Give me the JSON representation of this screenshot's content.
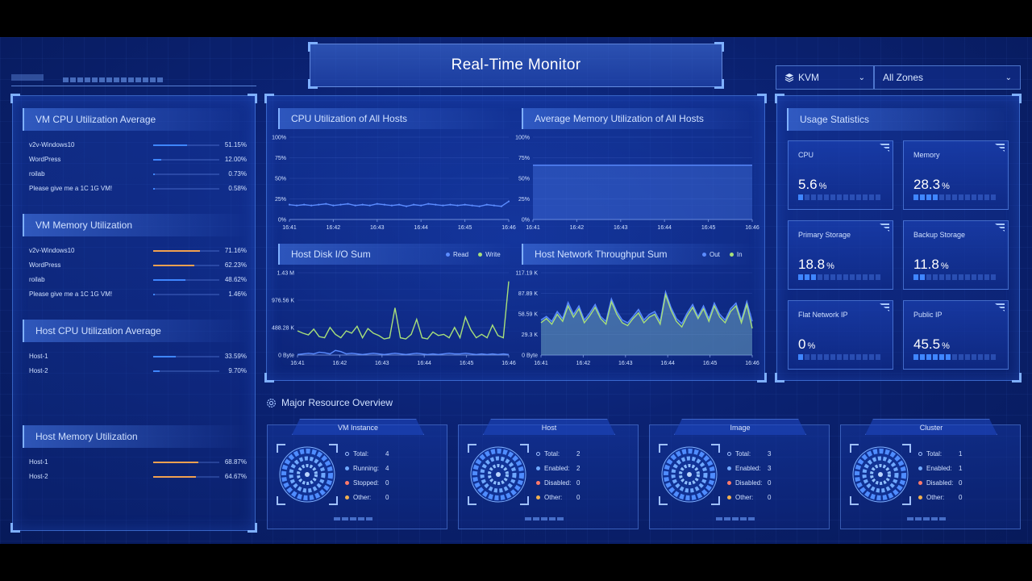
{
  "header": {
    "title": "Real-Time Monitor"
  },
  "selectors": {
    "hypervisor": {
      "value": "KVM",
      "icon": "layers-icon"
    },
    "zone": {
      "value": "All Zones"
    }
  },
  "left": {
    "vm_cpu": {
      "title": "VM CPU Utilization Average",
      "items": [
        {
          "name": "v2v-Windows10",
          "pct": "51.15%",
          "value": 51.15
        },
        {
          "name": "WordPress",
          "pct": "12.00%",
          "value": 12.0
        },
        {
          "name": "roilab",
          "pct": "0.73%",
          "value": 0.73
        },
        {
          "name": "Please give me a 1C 1G VM!",
          "pct": "0.58%",
          "value": 0.58
        }
      ]
    },
    "vm_mem": {
      "title": "VM Memory Utilization",
      "items": [
        {
          "name": "v2v-Windows10",
          "pct": "71.16%",
          "value": 71.16,
          "color": "#f0a050"
        },
        {
          "name": "WordPress",
          "pct": "62.23%",
          "value": 62.23,
          "color": "#f0a050"
        },
        {
          "name": "roilab",
          "pct": "48.62%",
          "value": 48.62,
          "color": "#3f86ff"
        },
        {
          "name": "Please give me a 1C 1G VM!",
          "pct": "1.46%",
          "value": 1.46,
          "color": "#3f86ff"
        }
      ]
    },
    "host_cpu": {
      "title": "Host CPU Utilization Average",
      "items": [
        {
          "name": "Host-1",
          "pct": "33.59%",
          "value": 33.59
        },
        {
          "name": "Host-2",
          "pct": "9.70%",
          "value": 9.7
        }
      ]
    },
    "host_mem": {
      "title": "Host Memory Utilization",
      "items": [
        {
          "name": "Host-1",
          "pct": "68.87%",
          "value": 68.87
        },
        {
          "name": "Host-2",
          "pct": "64.67%",
          "value": 64.67
        }
      ]
    }
  },
  "charts": {
    "cpu": {
      "title": "CPU Utilization of All Hosts"
    },
    "mem": {
      "title": "Average Memory Utilization of All Hosts"
    },
    "disk": {
      "title": "Host Disk I/O Sum",
      "legend": [
        "Read",
        "Write"
      ]
    },
    "net": {
      "title": "Host Network Throughput Sum",
      "legend": [
        "Out",
        "In"
      ]
    }
  },
  "chart_data": [
    {
      "type": "line",
      "title": "CPU Utilization of All Hosts",
      "x_ticks": [
        "16:41",
        "16:42",
        "16:43",
        "16:44",
        "16:45",
        "16:46"
      ],
      "y_ticks": [
        "100%",
        "75%",
        "50%",
        "25%",
        "0%"
      ],
      "ylim": [
        0,
        100
      ],
      "series": [
        {
          "values": [
            18,
            17,
            18,
            17,
            18,
            19,
            17,
            18,
            19,
            17,
            18,
            17,
            19,
            18,
            17,
            18,
            16,
            18,
            17,
            19,
            18,
            17,
            18,
            17,
            18,
            17,
            16,
            18,
            17,
            16,
            22
          ]
        }
      ]
    },
    {
      "type": "area",
      "title": "Average Memory Utilization of All Hosts",
      "x_ticks": [
        "16:41",
        "16:42",
        "16:43",
        "16:44",
        "16:45",
        "16:46"
      ],
      "y_ticks": [
        "100%",
        "75%",
        "50%",
        "25%",
        "0%"
      ],
      "ylim": [
        0,
        100
      ],
      "series": [
        {
          "values": [
            66,
            66,
            66,
            66,
            66,
            66,
            66,
            66,
            66,
            66,
            66
          ]
        }
      ]
    },
    {
      "type": "line",
      "title": "Host Disk I/O Sum",
      "x_ticks": [
        "16:41",
        "16:42",
        "16:43",
        "16:44",
        "16:45",
        "16:46"
      ],
      "y_ticks": [
        "1.43 M",
        "976.56 K",
        "488.28 K",
        "0 Byte"
      ],
      "ylim": [
        0,
        1.43
      ],
      "series": [
        {
          "name": "Read",
          "color": "#5b8cff",
          "values": [
            0.01,
            0.02,
            0.03,
            0.02,
            0.05,
            0.04,
            0.02,
            0.08,
            0.06,
            0.02,
            0.03,
            0.02,
            0.01,
            0.02,
            0.03,
            0.02,
            0.01,
            0.02,
            0.03,
            0.02,
            0.01,
            0.02,
            0.03,
            0.02,
            0.01,
            0.02,
            0.01,
            0.02,
            0.03,
            0.02,
            0.02,
            0.03,
            0.02,
            0.01,
            0.02,
            0.01,
            0.02,
            0.01,
            0.02,
            0.01
          ]
        },
        {
          "name": "Write",
          "color": "#a8e07a",
          "values": [
            0.42,
            0.38,
            0.35,
            0.45,
            0.32,
            0.3,
            0.48,
            0.36,
            0.3,
            0.42,
            0.38,
            0.5,
            0.3,
            0.46,
            0.38,
            0.34,
            0.28,
            0.3,
            0.82,
            0.3,
            0.28,
            0.36,
            0.62,
            0.3,
            0.28,
            0.4,
            0.34,
            0.36,
            0.3,
            0.48,
            0.3,
            0.66,
            0.44,
            0.3,
            0.36,
            0.3,
            0.52,
            0.34,
            0.3,
            1.28
          ]
        }
      ]
    },
    {
      "type": "area",
      "title": "Host Network Throughput Sum",
      "x_ticks": [
        "16:41",
        "16:42",
        "16:43",
        "16:44",
        "16:45",
        "16:46"
      ],
      "y_ticks": [
        "117.19 K",
        "87.89 K",
        "58.59 K",
        "29.3 K",
        "0 Byte"
      ],
      "ylim": [
        0,
        117.19
      ],
      "series": [
        {
          "name": "Out",
          "color": "#5b8cff",
          "values": [
            50,
            55,
            48,
            62,
            52,
            75,
            58,
            70,
            50,
            60,
            72,
            55,
            48,
            80,
            62,
            50,
            46,
            55,
            65,
            50,
            58,
            62,
            48,
            90,
            68,
            52,
            45,
            60,
            72,
            55,
            70,
            52,
            74,
            58,
            50,
            66,
            74,
            50,
            76,
            48
          ]
        },
        {
          "name": "In",
          "color": "#a8e07a",
          "values": [
            46,
            52,
            44,
            58,
            48,
            70,
            54,
            66,
            46,
            56,
            68,
            52,
            44,
            76,
            58,
            46,
            42,
            52,
            60,
            46,
            54,
            58,
            44,
            86,
            64,
            48,
            40,
            56,
            68,
            52,
            66,
            48,
            70,
            54,
            46,
            62,
            70,
            46,
            72,
            38
          ]
        }
      ]
    }
  ],
  "usage": {
    "title": "Usage Statistics",
    "cards": [
      {
        "label": "CPU",
        "value": "5.6",
        "unit": "%",
        "level": 5.6
      },
      {
        "label": "Memory",
        "value": "28.3",
        "unit": "%",
        "level": 28.3
      },
      {
        "label": "Primary Storage",
        "value": "18.8",
        "unit": "%",
        "level": 18.8
      },
      {
        "label": "Backup Storage",
        "value": "11.8",
        "unit": "%",
        "level": 11.8
      },
      {
        "label": "Flat Network IP",
        "value": "0",
        "unit": "%",
        "level": 0
      },
      {
        "label": "Public IP",
        "value": "45.5",
        "unit": "%",
        "level": 45.5
      }
    ]
  },
  "overview": {
    "title": "Major Resource Overview",
    "icon": "gear-icon",
    "cards": [
      {
        "title": "VM Instance",
        "stats": [
          [
            "Total:",
            "4"
          ],
          [
            "Running:",
            "4"
          ],
          [
            "Stopped:",
            "0"
          ],
          [
            "Other:",
            "0"
          ]
        ]
      },
      {
        "title": "Host",
        "stats": [
          [
            "Total:",
            "2"
          ],
          [
            "Enabled:",
            "2"
          ],
          [
            "Disabled:",
            "0"
          ],
          [
            "Other:",
            "0"
          ]
        ]
      },
      {
        "title": "Image",
        "stats": [
          [
            "Total:",
            "3"
          ],
          [
            "Enabled:",
            "3"
          ],
          [
            "Disabled:",
            "0"
          ],
          [
            "Other:",
            "0"
          ]
        ]
      },
      {
        "title": "Cluster",
        "stats": [
          [
            "Total:",
            "1"
          ],
          [
            "Enabled:",
            "1"
          ],
          [
            "Disabled:",
            "0"
          ],
          [
            "Other:",
            "0"
          ]
        ]
      }
    ],
    "stat_colors": [
      "#9fc0ff",
      "#6fa8ff",
      "#ff7a6a",
      "#f0b050"
    ]
  }
}
